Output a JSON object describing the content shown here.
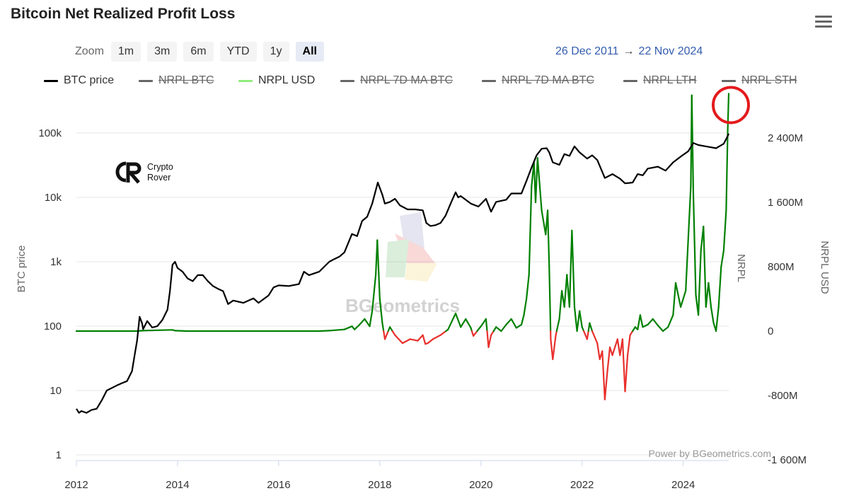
{
  "title": "Bitcoin Net Realized Profit Loss",
  "zoom": {
    "label": "Zoom",
    "buttons": [
      "1m",
      "3m",
      "6m",
      "YTD",
      "1y",
      "All"
    ],
    "active": "All"
  },
  "range": {
    "from": "26 Dec 2011",
    "arrow": "→",
    "to": "22 Nov 2024"
  },
  "legend": [
    {
      "label": "BTC price",
      "color": "#000000",
      "visible": true
    },
    {
      "label": "NRPL BTC",
      "color": "#666666",
      "visible": false
    },
    {
      "label": "NRPL USD",
      "color": "#90ed7d",
      "visible": true
    },
    {
      "label": "NRPL 7D MA BTC",
      "color": "#666666",
      "visible": false
    },
    {
      "label": "NRPL 7D MA BTC",
      "color": "#666666",
      "visible": false
    },
    {
      "label": "NRPL LTH",
      "color": "#666666",
      "visible": false
    },
    {
      "label": "NRPL STH",
      "color": "#666666",
      "visible": false
    }
  ],
  "watermark_logo": {
    "line1": "Crypto",
    "line2": "Rover"
  },
  "watermark_brand": "BGeometrics",
  "credit": "Power by BGeometrics.com",
  "colors": {
    "btc": "#000000",
    "profit": "#008000",
    "loss": "#e8302c",
    "highlight": "#e31a1c"
  },
  "chart_data": {
    "type": "line",
    "x_ticks": [
      "2012",
      "2014",
      "2016",
      "2018",
      "2020",
      "2022",
      "2024"
    ],
    "x_range": [
      2012.0,
      2024.9
    ],
    "left_axis": {
      "label": "BTC price",
      "scale": "log",
      "ticks": [
        1,
        10,
        100,
        1000,
        10000,
        100000
      ],
      "tick_labels": [
        "1",
        "10",
        "100",
        "1k",
        "10k",
        "100k"
      ]
    },
    "right_axis": {
      "label": "NRPL USD",
      "secondary_label": "NRPL",
      "unit": "M",
      "ticks": [
        -1600,
        -800,
        0,
        800,
        1600,
        2400
      ],
      "tick_labels": [
        "-1 600M",
        "-800M",
        "0",
        "800M",
        "1 600M",
        "2 400M"
      ]
    },
    "series": [
      {
        "name": "BTC price",
        "axis": "left",
        "points": [
          [
            2012.0,
            5.2
          ],
          [
            2012.05,
            4.5
          ],
          [
            2012.1,
            4.8
          ],
          [
            2012.2,
            4.5
          ],
          [
            2012.3,
            5.0
          ],
          [
            2012.4,
            5.2
          ],
          [
            2012.5,
            7.0
          ],
          [
            2012.6,
            10
          ],
          [
            2012.8,
            12
          ],
          [
            2012.9,
            13
          ],
          [
            2013.0,
            14
          ],
          [
            2013.1,
            20
          ],
          [
            2013.15,
            35
          ],
          [
            2013.2,
            60
          ],
          [
            2013.25,
            140
          ],
          [
            2013.3,
            110
          ],
          [
            2013.32,
            90
          ],
          [
            2013.4,
            120
          ],
          [
            2013.5,
            95
          ],
          [
            2013.6,
            100
          ],
          [
            2013.7,
            125
          ],
          [
            2013.8,
            180
          ],
          [
            2013.85,
            350
          ],
          [
            2013.9,
            900
          ],
          [
            2013.95,
            1000
          ],
          [
            2014.0,
            800
          ],
          [
            2014.1,
            700
          ],
          [
            2014.2,
            550
          ],
          [
            2014.3,
            500
          ],
          [
            2014.4,
            620
          ],
          [
            2014.5,
            620
          ],
          [
            2014.6,
            500
          ],
          [
            2014.7,
            420
          ],
          [
            2014.8,
            380
          ],
          [
            2014.9,
            350
          ],
          [
            2015.0,
            220
          ],
          [
            2015.1,
            250
          ],
          [
            2015.3,
            230
          ],
          [
            2015.5,
            270
          ],
          [
            2015.6,
            230
          ],
          [
            2015.8,
            300
          ],
          [
            2015.9,
            400
          ],
          [
            2016.0,
            430
          ],
          [
            2016.2,
            420
          ],
          [
            2016.4,
            450
          ],
          [
            2016.5,
            700
          ],
          [
            2016.6,
            620
          ],
          [
            2016.8,
            700
          ],
          [
            2017.0,
            1000
          ],
          [
            2017.1,
            1100
          ],
          [
            2017.2,
            1200
          ],
          [
            2017.3,
            1400
          ],
          [
            2017.45,
            2700
          ],
          [
            2017.55,
            2500
          ],
          [
            2017.65,
            4300
          ],
          [
            2017.75,
            5000
          ],
          [
            2017.85,
            8000
          ],
          [
            2017.96,
            17000
          ],
          [
            2018.05,
            11000
          ],
          [
            2018.1,
            8000
          ],
          [
            2018.2,
            8500
          ],
          [
            2018.3,
            9500
          ],
          [
            2018.4,
            7500
          ],
          [
            2018.55,
            6500
          ],
          [
            2018.7,
            6500
          ],
          [
            2018.85,
            6300
          ],
          [
            2018.92,
            4000
          ],
          [
            2019.0,
            3600
          ],
          [
            2019.1,
            3700
          ],
          [
            2019.2,
            4000
          ],
          [
            2019.3,
            5200
          ],
          [
            2019.4,
            8000
          ],
          [
            2019.5,
            12000
          ],
          [
            2019.55,
            10000
          ],
          [
            2019.6,
            10500
          ],
          [
            2019.8,
            8000
          ],
          [
            2019.95,
            7200
          ],
          [
            2020.1,
            9500
          ],
          [
            2020.2,
            6000
          ],
          [
            2020.3,
            8500
          ],
          [
            2020.5,
            9200
          ],
          [
            2020.6,
            11500
          ],
          [
            2020.8,
            11500
          ],
          [
            2020.9,
            18000
          ],
          [
            2021.0,
            29000
          ],
          [
            2021.1,
            45000
          ],
          [
            2021.2,
            57000
          ],
          [
            2021.3,
            58000
          ],
          [
            2021.35,
            50000
          ],
          [
            2021.42,
            35000
          ],
          [
            2021.55,
            32000
          ],
          [
            2021.65,
            47000
          ],
          [
            2021.75,
            44000
          ],
          [
            2021.85,
            62000
          ],
          [
            2021.95,
            50000
          ],
          [
            2022.1,
            40000
          ],
          [
            2022.2,
            45000
          ],
          [
            2022.3,
            38000
          ],
          [
            2022.45,
            20000
          ],
          [
            2022.6,
            23000
          ],
          [
            2022.75,
            19500
          ],
          [
            2022.85,
            16500
          ],
          [
            2023.0,
            17000
          ],
          [
            2023.1,
            23000
          ],
          [
            2023.2,
            22000
          ],
          [
            2023.3,
            28000
          ],
          [
            2023.5,
            30000
          ],
          [
            2023.65,
            26000
          ],
          [
            2023.8,
            35000
          ],
          [
            2023.95,
            43000
          ],
          [
            2024.1,
            52000
          ],
          [
            2024.2,
            70000
          ],
          [
            2024.3,
            65000
          ],
          [
            2024.45,
            62000
          ],
          [
            2024.55,
            60000
          ],
          [
            2024.65,
            58000
          ],
          [
            2024.8,
            68000
          ],
          [
            2024.88,
            90000
          ],
          [
            2024.9,
            98000
          ]
        ]
      },
      {
        "name": "NRPL USD",
        "axis": "right",
        "unit": "M USD",
        "points": [
          [
            2012.0,
            0
          ],
          [
            2013.2,
            0
          ],
          [
            2013.3,
            5
          ],
          [
            2013.9,
            15
          ],
          [
            2013.95,
            5
          ],
          [
            2014.2,
            0
          ],
          [
            2015.0,
            0
          ],
          [
            2016.0,
            0
          ],
          [
            2016.8,
            0
          ],
          [
            2017.0,
            5
          ],
          [
            2017.3,
            20
          ],
          [
            2017.45,
            60
          ],
          [
            2017.5,
            20
          ],
          [
            2017.6,
            80
          ],
          [
            2017.7,
            150
          ],
          [
            2017.8,
            60
          ],
          [
            2017.85,
            250
          ],
          [
            2017.92,
            700
          ],
          [
            2017.95,
            1130
          ],
          [
            2018.0,
            400
          ],
          [
            2018.05,
            100
          ],
          [
            2018.1,
            -100
          ],
          [
            2018.2,
            50
          ],
          [
            2018.3,
            -50
          ],
          [
            2018.45,
            -150
          ],
          [
            2018.6,
            -100
          ],
          [
            2018.75,
            -120
          ],
          [
            2018.85,
            -50
          ],
          [
            2018.9,
            -160
          ],
          [
            2018.95,
            -150
          ],
          [
            2019.05,
            -100
          ],
          [
            2019.2,
            -50
          ],
          [
            2019.35,
            20
          ],
          [
            2019.5,
            220
          ],
          [
            2019.6,
            50
          ],
          [
            2019.7,
            150
          ],
          [
            2019.8,
            40
          ],
          [
            2019.85,
            -60
          ],
          [
            2019.95,
            20
          ],
          [
            2020.0,
            60
          ],
          [
            2020.1,
            150
          ],
          [
            2020.15,
            -200
          ],
          [
            2020.2,
            -50
          ],
          [
            2020.3,
            50
          ],
          [
            2020.4,
            0
          ],
          [
            2020.5,
            80
          ],
          [
            2020.6,
            150
          ],
          [
            2020.7,
            40
          ],
          [
            2020.8,
            80
          ],
          [
            2020.85,
            200
          ],
          [
            2020.9,
            400
          ],
          [
            2020.95,
            700
          ],
          [
            2021.0,
            1800
          ],
          [
            2021.05,
            2100
          ],
          [
            2021.08,
            1600
          ],
          [
            2021.12,
            2150
          ],
          [
            2021.2,
            1500
          ],
          [
            2021.28,
            1200
          ],
          [
            2021.32,
            1500
          ],
          [
            2021.35,
            800
          ],
          [
            2021.38,
            -100
          ],
          [
            2021.42,
            -350
          ],
          [
            2021.48,
            -50
          ],
          [
            2021.55,
            150
          ],
          [
            2021.6,
            500
          ],
          [
            2021.65,
            300
          ],
          [
            2021.7,
            700
          ],
          [
            2021.75,
            300
          ],
          [
            2021.8,
            1250
          ],
          [
            2021.85,
            300
          ],
          [
            2021.9,
            0
          ],
          [
            2021.95,
            250
          ],
          [
            2022.0,
            50
          ],
          [
            2022.1,
            -100
          ],
          [
            2022.15,
            100
          ],
          [
            2022.2,
            0
          ],
          [
            2022.3,
            -150
          ],
          [
            2022.35,
            -350
          ],
          [
            2022.4,
            -250
          ],
          [
            2022.45,
            -850
          ],
          [
            2022.5,
            -500
          ],
          [
            2022.55,
            -200
          ],
          [
            2022.6,
            -300
          ],
          [
            2022.7,
            -100
          ],
          [
            2022.75,
            -300
          ],
          [
            2022.8,
            -100
          ],
          [
            2022.85,
            -750
          ],
          [
            2022.9,
            -300
          ],
          [
            2022.95,
            -50
          ],
          [
            2023.05,
            50
          ],
          [
            2023.1,
            20
          ],
          [
            2023.15,
            200
          ],
          [
            2023.2,
            50
          ],
          [
            2023.3,
            80
          ],
          [
            2023.4,
            150
          ],
          [
            2023.5,
            70
          ],
          [
            2023.6,
            0
          ],
          [
            2023.7,
            50
          ],
          [
            2023.8,
            200
          ],
          [
            2023.85,
            600
          ],
          [
            2023.95,
            300
          ],
          [
            2024.05,
            500
          ],
          [
            2024.15,
            1800
          ],
          [
            2024.17,
            2930
          ],
          [
            2024.2,
            1700
          ],
          [
            2024.25,
            450
          ],
          [
            2024.3,
            200
          ],
          [
            2024.35,
            1000
          ],
          [
            2024.4,
            1300
          ],
          [
            2024.45,
            300
          ],
          [
            2024.5,
            600
          ],
          [
            2024.55,
            300
          ],
          [
            2024.6,
            100
          ],
          [
            2024.65,
            0
          ],
          [
            2024.7,
            300
          ],
          [
            2024.75,
            800
          ],
          [
            2024.8,
            1000
          ],
          [
            2024.85,
            1500
          ],
          [
            2024.88,
            2500
          ],
          [
            2024.9,
            2950
          ]
        ]
      }
    ]
  }
}
